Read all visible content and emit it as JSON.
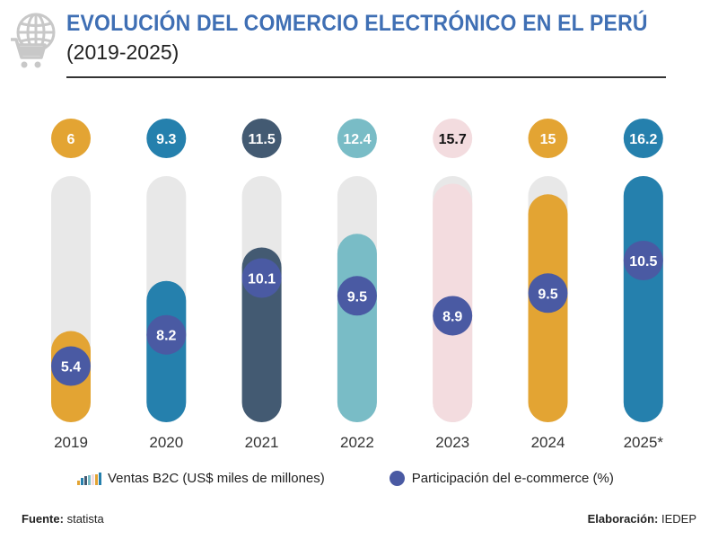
{
  "header": {
    "title": "EVOLUCIÓN DEL COMERCIO ELECTRÓNICO EN EL  PERÚ",
    "subtitle": "(2019-2025)",
    "logo_icon": "globe-cart-icon"
  },
  "colors": {
    "title": "#3f6fb4",
    "track": "#e8e8e8",
    "participation_dot": "#4a5aa3"
  },
  "chart_data": {
    "type": "bar",
    "title": "EVOLUCIÓN DEL COMERCIO ELECTRÓNICO EN EL  PERÚ (2019-2025)",
    "categories": [
      "2019",
      "2020",
      "2021",
      "2022",
      "2023",
      "2024",
      "2025*"
    ],
    "series": [
      {
        "name": "Ventas B2C (US$ miles de millones)",
        "values": [
          6,
          9.3,
          11.5,
          12.4,
          15.7,
          15,
          16.2
        ],
        "labels": [
          "6",
          "9.3",
          "11.5",
          "12.4",
          "15.7",
          "15",
          "16.2"
        ],
        "colors": [
          "#e3a433",
          "#2580ad",
          "#435a72",
          "#79bcc6",
          "#f3dcdf",
          "#e3a433",
          "#2580ad"
        ],
        "label_text_colors": [
          "#ffffff",
          "#ffffff",
          "#ffffff",
          "#ffffff",
          "#111111",
          "#ffffff",
          "#ffffff"
        ]
      },
      {
        "name": "Participación del e-commerce (%)",
        "values": [
          5.4,
          8.2,
          10.1,
          9.5,
          8.9,
          9.5,
          10.5
        ],
        "labels": [
          "5.4",
          "8.2",
          "10.1",
          "9.5",
          "8.9",
          "9.5",
          "10.5"
        ],
        "color": "#4a5aa3"
      }
    ],
    "ylim": [
      0,
      16.2
    ],
    "grid": false,
    "legend": "bottom",
    "xlabel": "",
    "ylabel": ""
  },
  "legend": {
    "sales_label": "Ventas B2C (US$ miles de millones)",
    "share_label": "Participación del e-commerce (%)"
  },
  "footer": {
    "source_label": "Fuente:",
    "source_value": "statista",
    "credit_label": "Elaboración:",
    "credit_value": "IEDEP"
  }
}
